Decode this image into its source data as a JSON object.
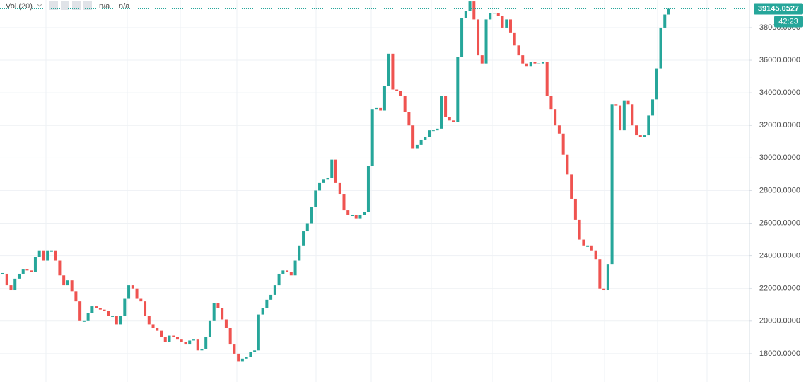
{
  "chart_data": {
    "type": "candlestick",
    "indicator": "Vol (20)",
    "indicator_values": [
      "n/a",
      "n/a"
    ],
    "up_color": "#26a69a",
    "down_color": "#ef5350",
    "ylim": [
      16260,
      39690
    ],
    "yticks": [
      {
        "value": 18000,
        "label": "18000.0000"
      },
      {
        "value": 20000,
        "label": "20000.0000"
      },
      {
        "value": 22000,
        "label": "22000.0000"
      },
      {
        "value": 24000,
        "label": "24000.0000"
      },
      {
        "value": 26000,
        "label": "26000.0000"
      },
      {
        "value": 28000,
        "label": "28000.0000"
      },
      {
        "value": 30000,
        "label": "30000.0000"
      },
      {
        "value": 32000,
        "label": "32000.0000"
      },
      {
        "value": 34000,
        "label": "34000.0000"
      },
      {
        "value": 36000,
        "label": "36000.0000"
      },
      {
        "value": 38000,
        "label": "38000.0000"
      }
    ],
    "grid": true,
    "last_price": 39145.0527,
    "countdown": "42:23",
    "close": [
      22900,
      22200,
      21900,
      22600,
      22900,
      23200,
      23100,
      23000,
      23900,
      24300,
      23700,
      24300,
      24300,
      23700,
      22800,
      22200,
      22500,
      21800,
      21200,
      20000,
      20000,
      20500,
      20900,
      20800,
      20700,
      20600,
      20300,
      20300,
      19800,
      20300,
      21400,
      22200,
      22000,
      21400,
      21200,
      20300,
      19800,
      19600,
      19400,
      19000,
      18700,
      19100,
      19000,
      18900,
      18700,
      18600,
      18800,
      18900,
      18200,
      18300,
      19000,
      20000,
      21100,
      20800,
      20100,
      19600,
      18600,
      18000,
      17500,
      17700,
      17800,
      18100,
      18200,
      20400,
      20800,
      21300,
      21600,
      22200,
      22900,
      23100,
      23000,
      22800,
      23700,
      24600,
      25500,
      26000,
      27000,
      28000,
      28500,
      28700,
      28800,
      29900,
      28500,
      27800,
      26800,
      26500,
      26500,
      26300,
      26500,
      26700,
      29500,
      33000,
      33100,
      32900,
      34400,
      36400,
      34200,
      34100,
      33800,
      32800,
      32000,
      30600,
      30800,
      31100,
      31300,
      31700,
      31700,
      31800,
      33800,
      32500,
      32300,
      32200,
      36200,
      38600,
      39000,
      39600,
      38500,
      36300,
      35800,
      38500,
      38900,
      38900,
      38700,
      38000,
      38500,
      37700,
      36900,
      36300,
      35800,
      35600,
      35900,
      35800,
      35800,
      35900,
      33800,
      33000,
      32000,
      31500,
      30200,
      29000,
      27500,
      26200,
      25000,
      24600,
      24600,
      24300,
      23800,
      22000,
      21900,
      23500,
      33300,
      33200,
      31700,
      33500,
      33300,
      32000,
      31400,
      31300,
      31400,
      32600,
      33600,
      35500,
      38000,
      38800,
      39145
    ]
  }
}
